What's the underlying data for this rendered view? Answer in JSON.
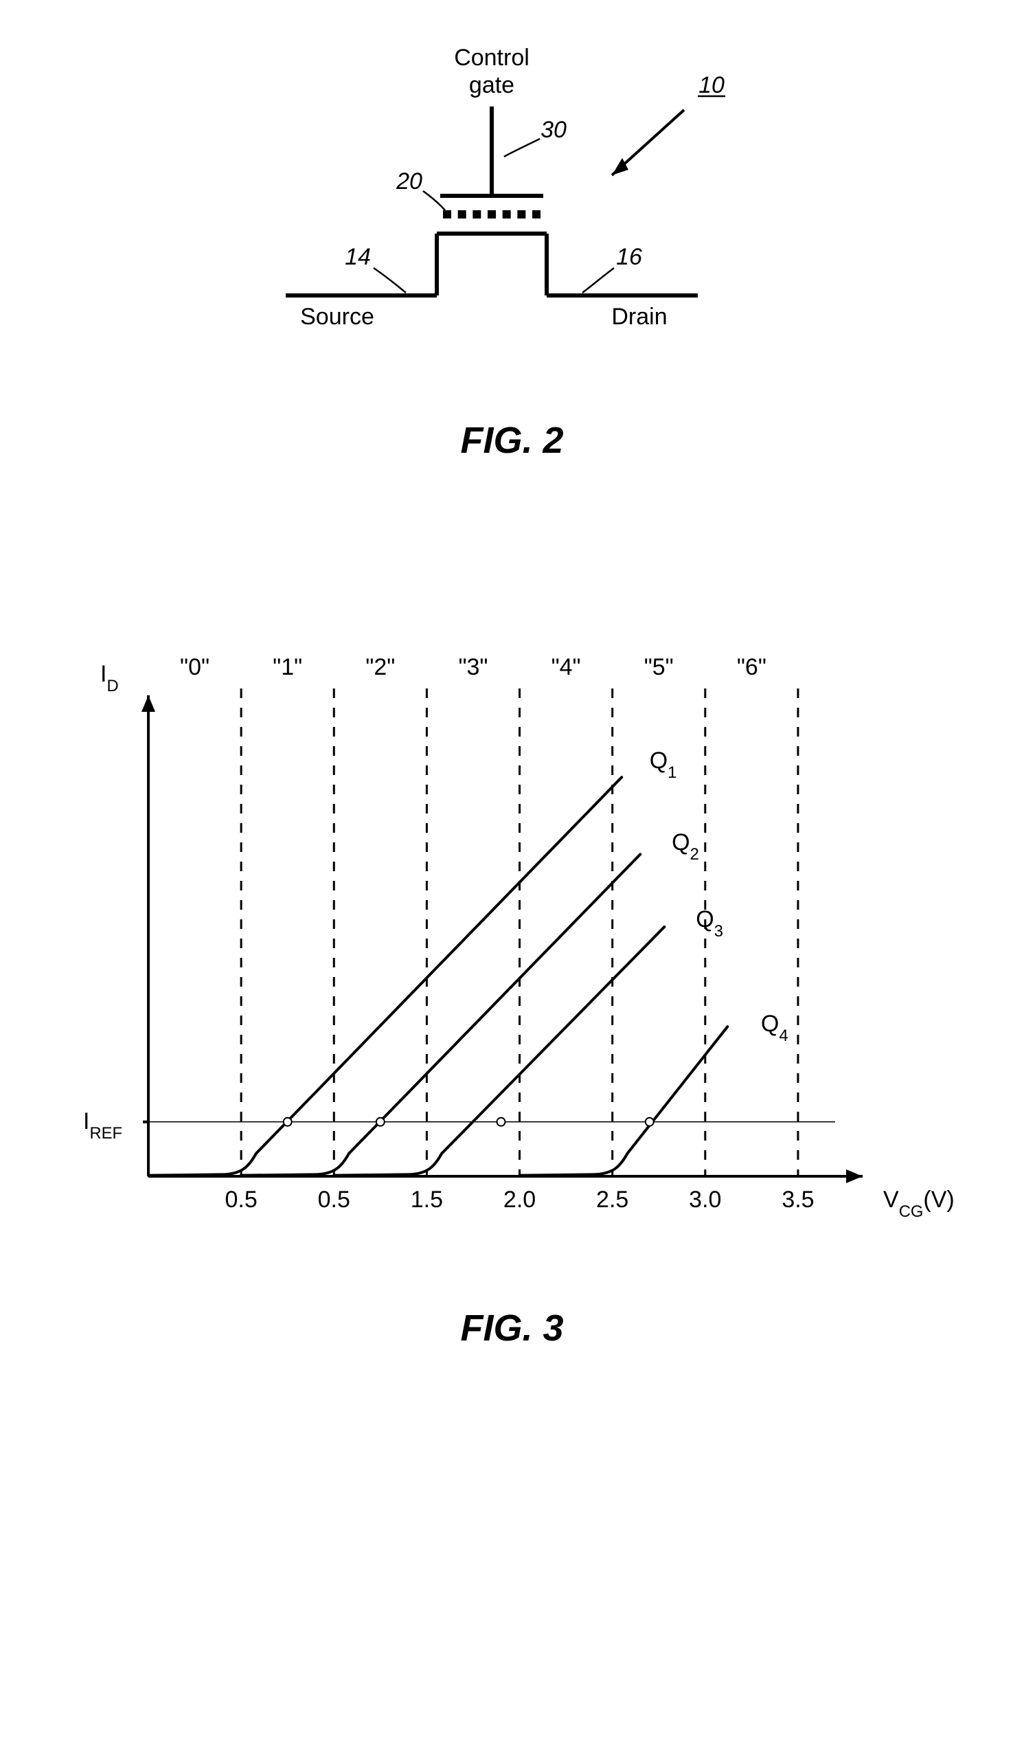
{
  "fig2": {
    "caption": "FIG. 2",
    "labels": {
      "control_gate": "Control\ngate",
      "source": "Source",
      "drain": "Drain",
      "ref10": "10",
      "ref14": "14",
      "ref16": "16",
      "ref20": "20",
      "ref30": "30"
    },
    "style": {
      "stroke_color": "#000000",
      "line_width_main": 6,
      "line_width_lead": 2.5,
      "text_color": "#000000",
      "label_fontsize": 34,
      "ref_fontsize": 34
    }
  },
  "fig3": {
    "caption": "FIG. 3",
    "type": "line-chart",
    "axes": {
      "x_label": "V",
      "x_label_sub": "CG",
      "x_label_unit": "(V)",
      "y_label": "I",
      "y_label_sub": "D",
      "iref_label": "I",
      "iref_label_sub": "REF",
      "xlim": [
        0,
        3.7
      ],
      "ylim": [
        0,
        1.0
      ],
      "x_ticks": [
        0.5,
        0.5,
        1.5,
        2.0,
        2.5,
        3.0,
        3.5
      ],
      "x_tick_positions": [
        0.5,
        1.0,
        1.5,
        2.0,
        2.5,
        3.0,
        3.5
      ],
      "vline_positions": [
        0.5,
        1.0,
        1.5,
        2.0,
        2.5,
        3.0,
        3.5
      ],
      "region_labels": [
        "\"0\"",
        "\"1\"",
        "\"2\"",
        "\"3\"",
        "\"4\"",
        "\"5\"",
        "\"6\""
      ],
      "region_centers": [
        0.25,
        0.75,
        1.25,
        1.75,
        2.25,
        2.75,
        3.25
      ],
      "iref_y": 0.12
    },
    "curves": [
      {
        "label": "Q",
        "sub": "1",
        "start_x": 0.5,
        "label_x": 2.7,
        "label_y": 0.9,
        "end_x": 2.55,
        "end_y": 0.88,
        "marker_x": 0.75
      },
      {
        "label": "Q",
        "sub": "2",
        "start_x": 1.0,
        "label_x": 2.82,
        "label_y": 0.72,
        "end_x": 2.65,
        "end_y": 0.71,
        "marker_x": 1.25
      },
      {
        "label": "Q",
        "sub": "3",
        "start_x": 1.5,
        "label_x": 2.95,
        "label_y": 0.55,
        "end_x": 2.78,
        "end_y": 0.55,
        "marker_x": 1.9
      },
      {
        "label": "Q",
        "sub": "4",
        "start_x": 2.5,
        "label_x": 3.3,
        "label_y": 0.32,
        "end_x": 3.12,
        "end_y": 0.33,
        "marker_x": 2.7
      }
    ],
    "style": {
      "axis_color": "#000000",
      "axis_width": 4,
      "vline_color": "#000000",
      "vline_width": 3,
      "vline_dash": "14,14",
      "iref_line_width": 1.5,
      "curve_color": "#000000",
      "curve_width": 4,
      "marker_radius": 6,
      "marker_stroke": "#000000",
      "marker_fill": "#ffffff",
      "label_fontsize": 34,
      "tick_fontsize": 34,
      "region_fontsize": 34,
      "curve_label_fontsize": 34
    }
  }
}
